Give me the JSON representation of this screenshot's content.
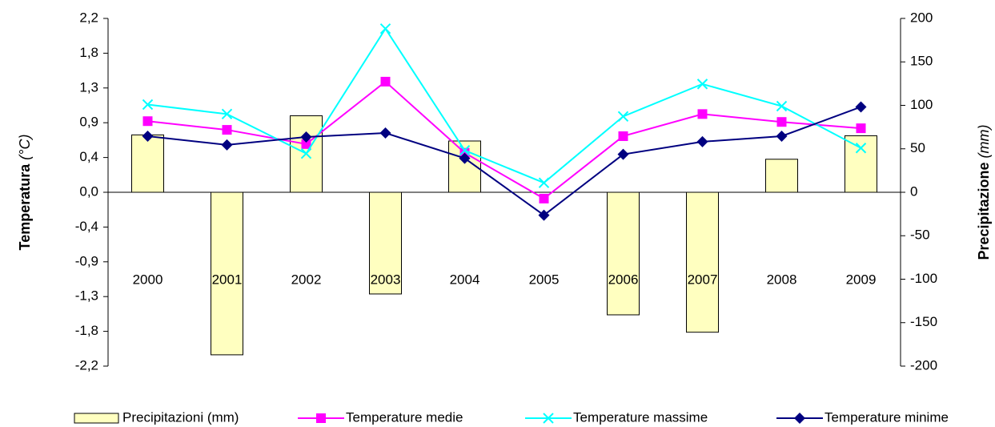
{
  "chart_data": {
    "type": "bar-line",
    "ylabel": "Temperatura",
    "ylabel_unit": "(°C)",
    "y2label": "Precipitazione",
    "y2label_unit": "(mm)",
    "categories": [
      "2000",
      "2001",
      "2002",
      "2003",
      "2004",
      "2005",
      "2006",
      "2007",
      "2008",
      "2009"
    ],
    "ylim": [
      -2.2,
      2.2
    ],
    "yticks": [
      {
        "value": 2.2,
        "label": "2,2"
      },
      {
        "value": 1.76,
        "label": "1,8"
      },
      {
        "value": 1.32,
        "label": "1,3"
      },
      {
        "value": 0.88,
        "label": "0,9"
      },
      {
        "value": 0.44,
        "label": "0,4"
      },
      {
        "value": 0,
        "label": "0,0"
      },
      {
        "value": -0.44,
        "label": "-0,4"
      },
      {
        "value": -0.88,
        "label": "-0,9"
      },
      {
        "value": -1.32,
        "label": "-1,3"
      },
      {
        "value": -1.76,
        "label": "-1,8"
      },
      {
        "value": -2.2,
        "label": "-2,2"
      }
    ],
    "y2lim": [
      -200,
      200
    ],
    "y2ticks": [
      200,
      150,
      100,
      50,
      0,
      -50,
      -100,
      -150,
      -200
    ],
    "legend": "bottom",
    "series": [
      {
        "name": "Precipitazioni (mm)",
        "type": "bar",
        "axis": "y2",
        "color": "#ffffc0",
        "values": [
          66,
          -187,
          88,
          -117,
          59,
          0,
          -141,
          -161,
          38,
          65
        ]
      },
      {
        "name": "Temperature medie",
        "type": "line",
        "marker": "square",
        "color": "#ff00ff",
        "values": [
          0.9,
          0.79,
          0.61,
          1.4,
          0.5,
          -0.08,
          0.71,
          0.99,
          0.89,
          0.81
        ]
      },
      {
        "name": "Temperature massime",
        "type": "line",
        "marker": "x",
        "color": "#00ffff",
        "values": [
          1.11,
          0.99,
          0.49,
          2.07,
          0.53,
          0.12,
          0.96,
          1.37,
          1.09,
          0.56
        ]
      },
      {
        "name": "Temperature minime",
        "type": "line",
        "marker": "diamond",
        "color": "#000080",
        "values": [
          0.71,
          0.6,
          0.7,
          0.75,
          0.43,
          -0.29,
          0.48,
          0.64,
          0.71,
          1.08
        ]
      }
    ]
  }
}
